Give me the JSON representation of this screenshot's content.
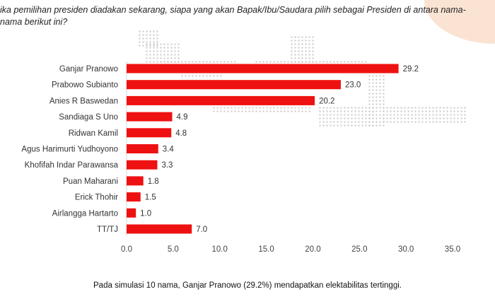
{
  "question": "ika pemilihan presiden diadakan sekarang, siapa yang akan Bapak/Ibu/Saudara pilih sebagai Presiden di antara nama-nama berikut ini?",
  "caption": "Pada simulasi 10 nama, Ganjar Pranowo (29.2%) mendapatkan elektabilitas tertinggi.",
  "colors": {
    "bar": "#ee1111",
    "accent_circle": "#fbe3d3"
  },
  "chart_data": {
    "type": "bar",
    "orientation": "horizontal",
    "categories": [
      "Ganjar Pranowo",
      "Prabowo Subianto",
      "Anies R Baswedan",
      "Sandiaga S Uno",
      "Ridwan Kamil",
      "Agus Harimurti Yudhoyono",
      "Khofifah Indar Parawansa",
      "Puan Maharani",
      "Erick Thohir",
      "Airlangga Hartarto",
      "TT/TJ"
    ],
    "values": [
      29.2,
      23.0,
      20.2,
      4.9,
      4.8,
      3.4,
      3.3,
      1.8,
      1.5,
      1.0,
      7.0
    ],
    "value_labels": [
      "29.2",
      "23.0",
      "20.2",
      "4.9",
      "4.8",
      "3.4",
      "3.3",
      "1.8",
      "1.5",
      "1.0",
      "7.0"
    ],
    "xlim": [
      0,
      35
    ],
    "xticks": [
      "0.0",
      "5.0",
      "10.0",
      "15.0",
      "20.0",
      "25.0",
      "30.0",
      "35.0"
    ],
    "grid": false,
    "legend": "none"
  }
}
